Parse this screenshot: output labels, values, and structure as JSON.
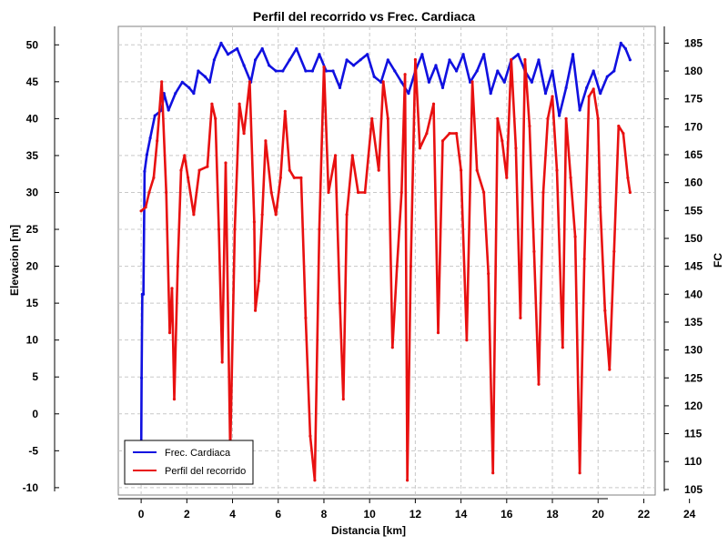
{
  "chart_data": {
    "type": "line",
    "title": "Perfil del recorrido vs Frec. Cardiaca",
    "xlabel": "Distancia [km]",
    "ylabel_left": "Elevacion [m]",
    "ylabel_right": "FC",
    "xlim": [
      -1,
      22.5
    ],
    "ylim_left": [
      -11,
      52.5
    ],
    "ylim_right": [
      104,
      188
    ],
    "x_ticks": [
      "0",
      "2",
      "4",
      "6",
      "8",
      "10",
      "12",
      "14",
      "16",
      "18",
      "20",
      "22",
      "24"
    ],
    "y_left_ticks": [
      "-10",
      "-5",
      "0",
      "5",
      "10",
      "15",
      "20",
      "25",
      "30",
      "35",
      "40",
      "45",
      "50"
    ],
    "y_right_ticks": [
      "105",
      "110",
      "115",
      "120",
      "125",
      "130",
      "135",
      "140",
      "145",
      "150",
      "155",
      "160",
      "165",
      "170",
      "175",
      "180",
      "185"
    ],
    "grid": true,
    "legend": "bottom-left",
    "colors": {
      "heart_rate": "#1010e0",
      "elevation": "#e81010"
    },
    "series": [
      {
        "name": "Frec. Cardiaca",
        "axis": "right",
        "points": [
          [
            0,
            110
          ],
          [
            0.02,
            125
          ],
          [
            0.05,
            140
          ],
          [
            0.1,
            140
          ],
          [
            0.15,
            162
          ],
          [
            0.25,
            165
          ],
          [
            0.4,
            168
          ],
          [
            0.6,
            172
          ],
          [
            0.9,
            173
          ],
          [
            1.0,
            176
          ],
          [
            1.2,
            173
          ],
          [
            1.5,
            176
          ],
          [
            1.8,
            178
          ],
          [
            2.1,
            177
          ],
          [
            2.3,
            176
          ],
          [
            2.5,
            180
          ],
          [
            2.8,
            179
          ],
          [
            3.0,
            178
          ],
          [
            3.2,
            182
          ],
          [
            3.5,
            185
          ],
          [
            3.8,
            183
          ],
          [
            4.2,
            184
          ],
          [
            4.5,
            181
          ],
          [
            4.8,
            178
          ],
          [
            5.0,
            182
          ],
          [
            5.3,
            184
          ],
          [
            5.6,
            181
          ],
          [
            5.9,
            180
          ],
          [
            6.2,
            180
          ],
          [
            6.5,
            182
          ],
          [
            6.8,
            184
          ],
          [
            7.2,
            180
          ],
          [
            7.5,
            180
          ],
          [
            7.8,
            183
          ],
          [
            8.1,
            180
          ],
          [
            8.4,
            180
          ],
          [
            8.7,
            177
          ],
          [
            9.0,
            182
          ],
          [
            9.3,
            181
          ],
          [
            9.6,
            182
          ],
          [
            9.9,
            183
          ],
          [
            10.2,
            179
          ],
          [
            10.5,
            178
          ],
          [
            10.8,
            182
          ],
          [
            11.1,
            180
          ],
          [
            11.4,
            178
          ],
          [
            11.7,
            176
          ],
          [
            12.0,
            180
          ],
          [
            12.3,
            183
          ],
          [
            12.6,
            178
          ],
          [
            12.9,
            181
          ],
          [
            13.2,
            177
          ],
          [
            13.5,
            182
          ],
          [
            13.8,
            180
          ],
          [
            14.1,
            183
          ],
          [
            14.4,
            178
          ],
          [
            14.7,
            180
          ],
          [
            15.0,
            183
          ],
          [
            15.3,
            176
          ],
          [
            15.6,
            180
          ],
          [
            15.9,
            178
          ],
          [
            16.2,
            182
          ],
          [
            16.5,
            183
          ],
          [
            16.8,
            180
          ],
          [
            17.1,
            178
          ],
          [
            17.4,
            182
          ],
          [
            17.7,
            176
          ],
          [
            18.0,
            180
          ],
          [
            18.3,
            172
          ],
          [
            18.6,
            177
          ],
          [
            18.9,
            183
          ],
          [
            19.2,
            173
          ],
          [
            19.5,
            177
          ],
          [
            19.8,
            180
          ],
          [
            20.1,
            176
          ],
          [
            20.4,
            179
          ],
          [
            20.7,
            180
          ],
          [
            21.0,
            185
          ],
          [
            21.2,
            184
          ],
          [
            21.4,
            182
          ]
        ]
      },
      {
        "name": "Perfil del recorrido",
        "axis": "left",
        "points": [
          [
            0,
            27.5
          ],
          [
            0.2,
            28
          ],
          [
            0.35,
            30
          ],
          [
            0.55,
            32
          ],
          [
            0.7,
            37
          ],
          [
            0.9,
            45
          ],
          [
            1.1,
            30
          ],
          [
            1.25,
            11
          ],
          [
            1.35,
            17
          ],
          [
            1.45,
            2
          ],
          [
            1.6,
            20
          ],
          [
            1.75,
            33
          ],
          [
            1.9,
            35
          ],
          [
            2.05,
            32
          ],
          [
            2.3,
            27
          ],
          [
            2.55,
            33
          ],
          [
            2.9,
            33.5
          ],
          [
            3.1,
            42
          ],
          [
            3.25,
            40
          ],
          [
            3.4,
            25
          ],
          [
            3.55,
            7
          ],
          [
            3.7,
            34
          ],
          [
            3.9,
            -5
          ],
          [
            4.1,
            25
          ],
          [
            4.3,
            42
          ],
          [
            4.5,
            38
          ],
          [
            4.75,
            45
          ],
          [
            4.95,
            26
          ],
          [
            5.0,
            14
          ],
          [
            5.15,
            18
          ],
          [
            5.3,
            27
          ],
          [
            5.45,
            37
          ],
          [
            5.7,
            30
          ],
          [
            5.9,
            27
          ],
          [
            6.1,
            32
          ],
          [
            6.3,
            41
          ],
          [
            6.5,
            33
          ],
          [
            6.7,
            32
          ],
          [
            7.0,
            32
          ],
          [
            7.2,
            13
          ],
          [
            7.4,
            -3
          ],
          [
            7.6,
            -9
          ],
          [
            7.8,
            25
          ],
          [
            8.0,
            47
          ],
          [
            8.2,
            30
          ],
          [
            8.5,
            35
          ],
          [
            8.7,
            15
          ],
          [
            8.85,
            2
          ],
          [
            9.0,
            27
          ],
          [
            9.25,
            35
          ],
          [
            9.5,
            30
          ],
          [
            9.8,
            30
          ],
          [
            10.1,
            40
          ],
          [
            10.4,
            33
          ],
          [
            10.6,
            45
          ],
          [
            10.8,
            40
          ],
          [
            11.0,
            9
          ],
          [
            11.2,
            20
          ],
          [
            11.4,
            30
          ],
          [
            11.55,
            46
          ],
          [
            11.65,
            -9
          ],
          [
            11.8,
            20
          ],
          [
            12.0,
            48
          ],
          [
            12.2,
            36
          ],
          [
            12.5,
            38
          ],
          [
            12.8,
            42
          ],
          [
            13.0,
            11
          ],
          [
            13.2,
            37
          ],
          [
            13.5,
            38
          ],
          [
            13.8,
            38
          ],
          [
            14.0,
            33
          ],
          [
            14.25,
            10
          ],
          [
            14.5,
            45
          ],
          [
            14.7,
            33
          ],
          [
            15.0,
            30
          ],
          [
            15.2,
            19
          ],
          [
            15.4,
            -8
          ],
          [
            15.6,
            40
          ],
          [
            15.8,
            37
          ],
          [
            16.0,
            32
          ],
          [
            16.2,
            48
          ],
          [
            16.4,
            36
          ],
          [
            16.6,
            13
          ],
          [
            16.8,
            48
          ],
          [
            17.0,
            39
          ],
          [
            17.2,
            22
          ],
          [
            17.4,
            4
          ],
          [
            17.6,
            30
          ],
          [
            17.8,
            40
          ],
          [
            18.0,
            43
          ],
          [
            18.2,
            33
          ],
          [
            18.45,
            9
          ],
          [
            18.6,
            40
          ],
          [
            18.8,
            32
          ],
          [
            19.0,
            24
          ],
          [
            19.2,
            -8
          ],
          [
            19.4,
            21
          ],
          [
            19.6,
            43
          ],
          [
            19.8,
            44
          ],
          [
            20.0,
            40
          ],
          [
            20.1,
            28
          ],
          [
            20.3,
            14
          ],
          [
            20.5,
            6
          ],
          [
            20.7,
            22
          ],
          [
            20.9,
            39
          ],
          [
            21.1,
            38
          ],
          [
            21.3,
            32
          ],
          [
            21.4,
            30
          ]
        ]
      }
    ]
  }
}
